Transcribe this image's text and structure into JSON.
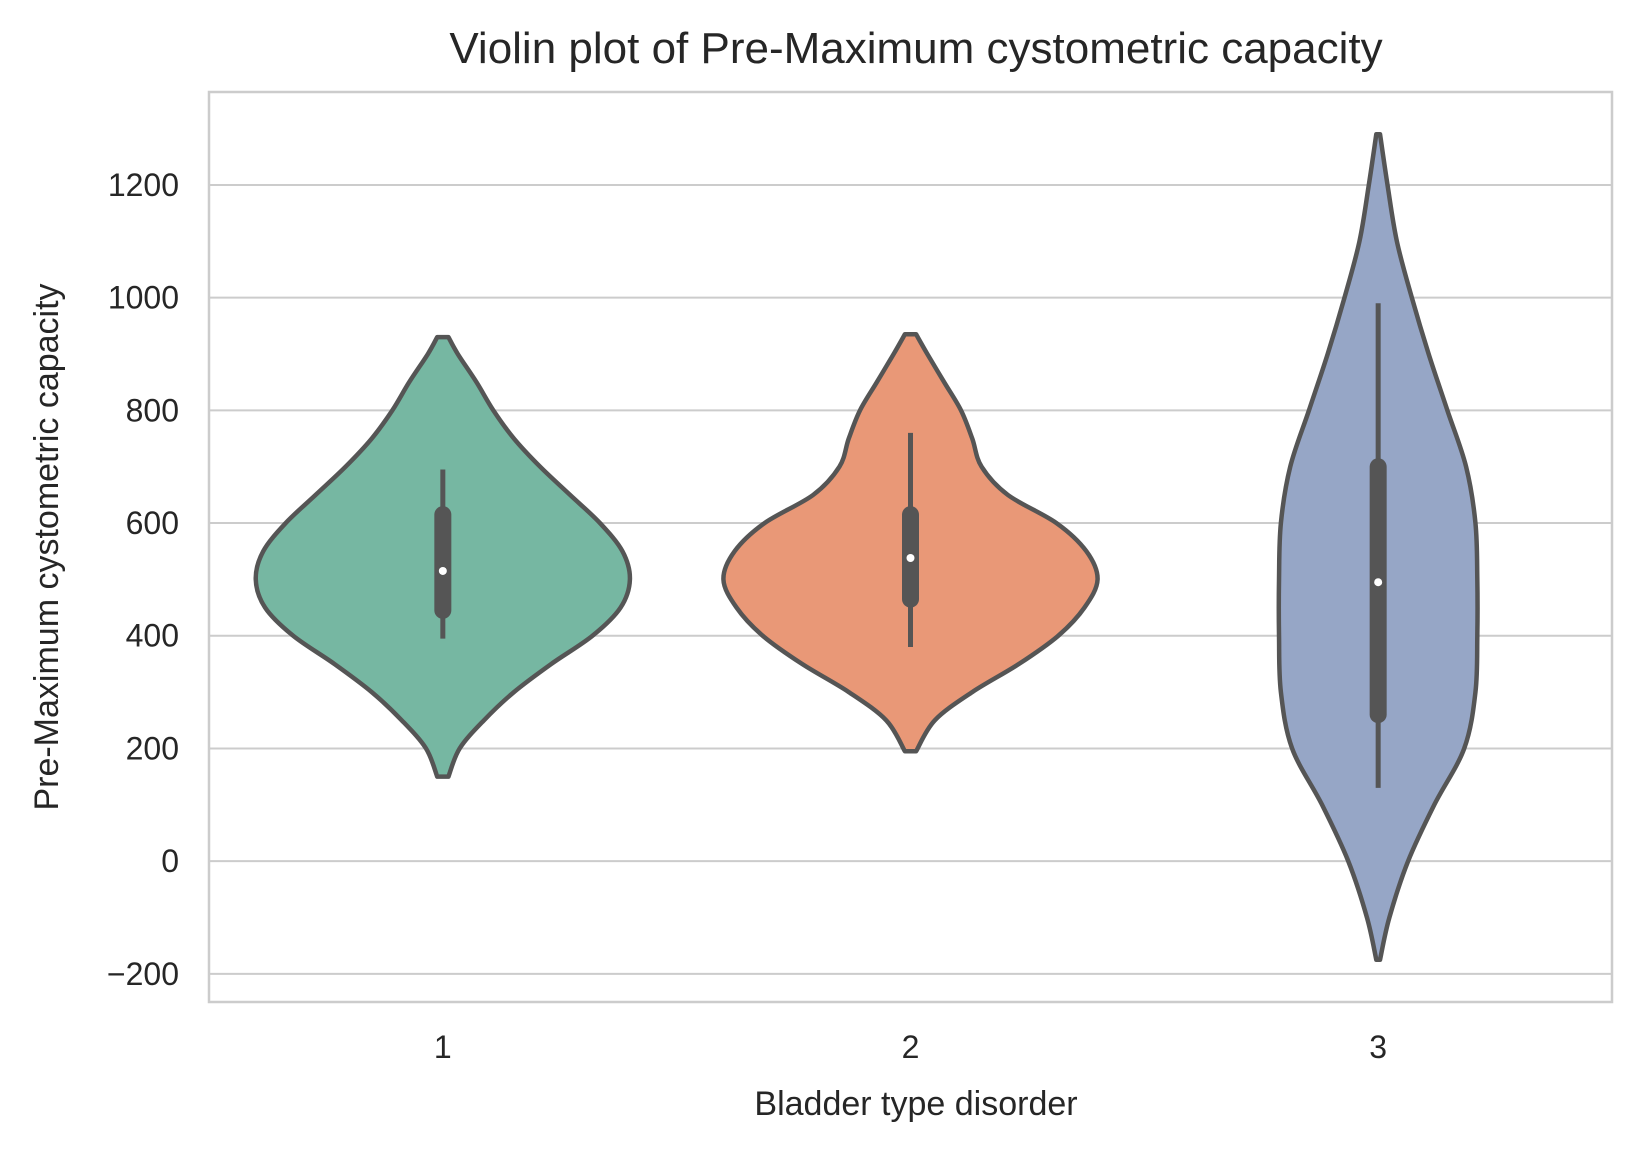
{
  "chart_data": {
    "type": "violin",
    "title": "Violin plot of Pre-Maximum cystometric capacity",
    "xlabel": "Bladder type disorder",
    "ylabel": "Pre-Maximum cystometric capacity",
    "categories": [
      "1",
      "2",
      "3"
    ],
    "yticks": [
      -200,
      0,
      200,
      400,
      600,
      800,
      1000,
      1200
    ],
    "ylim": [
      -250,
      1365
    ],
    "grid": true,
    "colors": [
      "#76b7a2",
      "#e99877",
      "#96a6c6"
    ],
    "outline_color": "#555555",
    "violins": [
      {
        "category": "1",
        "min_extent": 150,
        "max_extent": 930,
        "whisker_low": 395,
        "q1": 445,
        "median": 515,
        "q3": 615,
        "whisker_high": 695,
        "density": [
          [
            150,
            0.03
          ],
          [
            200,
            0.09
          ],
          [
            250,
            0.22
          ],
          [
            300,
            0.38
          ],
          [
            350,
            0.58
          ],
          [
            400,
            0.8
          ],
          [
            450,
            0.95
          ],
          [
            500,
            1.0
          ],
          [
            550,
            0.96
          ],
          [
            600,
            0.84
          ],
          [
            650,
            0.68
          ],
          [
            700,
            0.52
          ],
          [
            750,
            0.38
          ],
          [
            800,
            0.27
          ],
          [
            850,
            0.18
          ],
          [
            900,
            0.08
          ],
          [
            930,
            0.03
          ]
        ]
      },
      {
        "category": "2",
        "min_extent": 195,
        "max_extent": 935,
        "whisker_low": 380,
        "q1": 465,
        "median": 538,
        "q3": 615,
        "whisker_high": 760,
        "density": [
          [
            195,
            0.03
          ],
          [
            250,
            0.13
          ],
          [
            300,
            0.33
          ],
          [
            350,
            0.58
          ],
          [
            400,
            0.79
          ],
          [
            450,
            0.93
          ],
          [
            500,
            1.0
          ],
          [
            550,
            0.94
          ],
          [
            600,
            0.78
          ],
          [
            650,
            0.52
          ],
          [
            700,
            0.38
          ],
          [
            750,
            0.33
          ],
          [
            800,
            0.27
          ],
          [
            850,
            0.18
          ],
          [
            900,
            0.09
          ],
          [
            935,
            0.03
          ]
        ]
      },
      {
        "category": "3",
        "min_extent": -175,
        "max_extent": 1290,
        "whisker_low": 130,
        "q1": 260,
        "median": 495,
        "q3": 700,
        "whisker_high": 990,
        "density": [
          [
            -175,
            0.01
          ],
          [
            -100,
            0.06
          ],
          [
            0,
            0.16
          ],
          [
            100,
            0.3
          ],
          [
            200,
            0.46
          ],
          [
            300,
            0.52
          ],
          [
            400,
            0.53
          ],
          [
            500,
            0.53
          ],
          [
            600,
            0.52
          ],
          [
            700,
            0.47
          ],
          [
            800,
            0.37
          ],
          [
            900,
            0.27
          ],
          [
            1000,
            0.18
          ],
          [
            1100,
            0.1
          ],
          [
            1200,
            0.05
          ],
          [
            1290,
            0.01
          ]
        ]
      }
    ]
  }
}
